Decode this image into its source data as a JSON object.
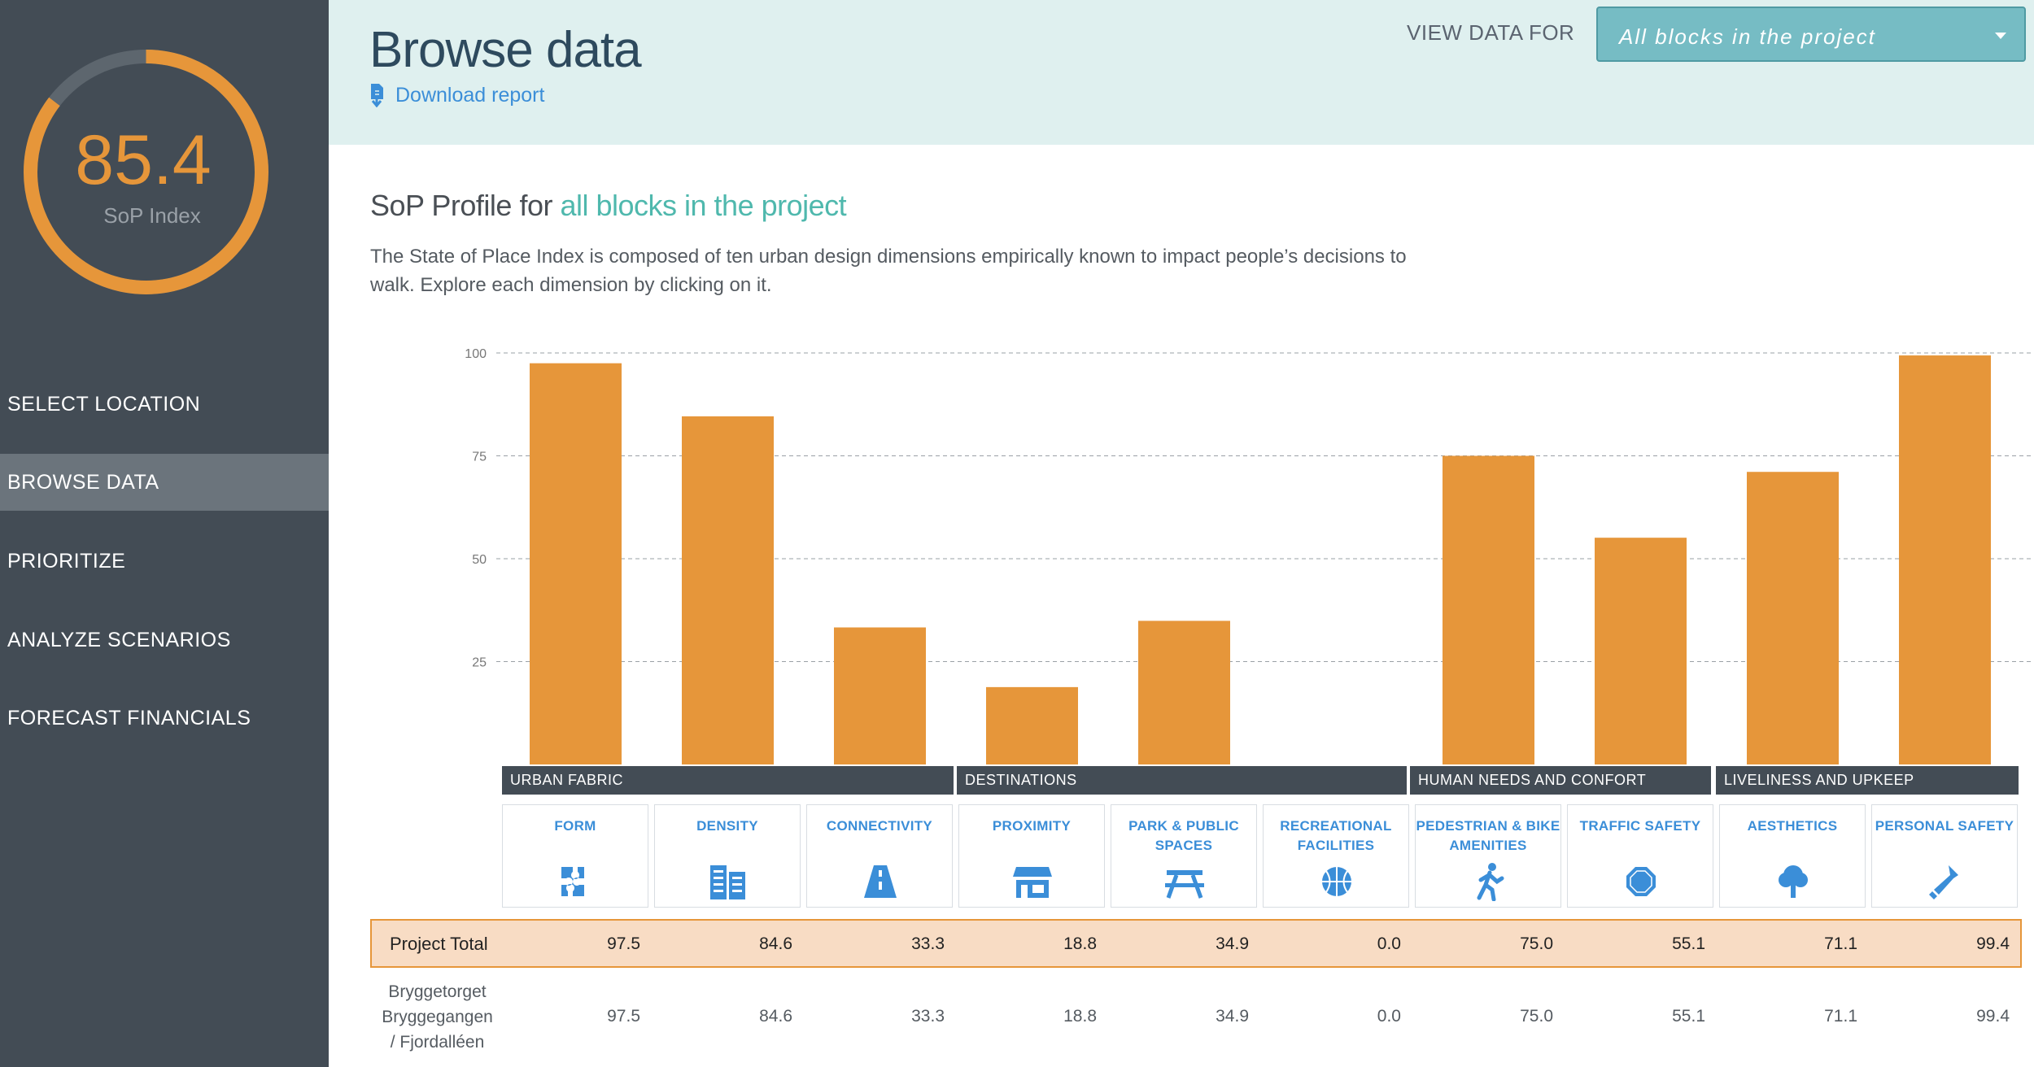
{
  "score": {
    "value": "85.4",
    "label": "SoP Index",
    "fraction": 0.854
  },
  "sidebar": {
    "items": [
      {
        "label": "SELECT LOCATION",
        "active": false
      },
      {
        "label": "BROWSE DATA",
        "active": true
      },
      {
        "label": "PRIORITIZE",
        "active": false
      },
      {
        "label": "ANALYZE SCENARIOS",
        "active": false
      },
      {
        "label": "FORECAST FINANCIALS",
        "active": false
      }
    ]
  },
  "header": {
    "title": "Browse data",
    "download_label": "Download report",
    "view_label": "VIEW DATA FOR",
    "view_value": "All blocks in the project"
  },
  "main": {
    "heading_prefix": "SoP Profile for",
    "heading_accent": "all blocks in the project",
    "description": "The State of Place Index is composed of ten urban design dimensions empirically known to impact people’s decisions to walk. Explore each dimension by clicking on it."
  },
  "chart_data": {
    "type": "bar",
    "categories": [
      "FORM",
      "DENSITY",
      "CONNECTIVITY",
      "PROXIMITY",
      "PARK & PUBLIC SPACES",
      "RECREATIONAL FACILITIES",
      "PEDESTRIAN & BIKE AMENITIES",
      "TRAFFIC SAFETY",
      "AESTHETICS",
      "PERSONAL SAFETY"
    ],
    "values": [
      97.5,
      84.6,
      33.3,
      18.8,
      34.9,
      0.0,
      75.0,
      55.1,
      71.1,
      99.4
    ],
    "ylim": [
      0,
      100
    ],
    "yticks": [
      25,
      50,
      75,
      100
    ],
    "grid": true,
    "bar_color": "#e6963a"
  },
  "groups": [
    {
      "label": "URBAN FABRIC"
    },
    {
      "label": "DESTINATIONS"
    },
    {
      "label": "HUMAN NEEDS AND CONFORT"
    },
    {
      "label": "LIVELINESS AND UPKEEP"
    }
  ],
  "dimensions": [
    {
      "label": "FORM",
      "icon": "puzzle-icon"
    },
    {
      "label": "DENSITY",
      "icon": "buildings-icon"
    },
    {
      "label": "CONNECTIVITY",
      "icon": "road-icon"
    },
    {
      "label": "PROXIMITY",
      "icon": "store-icon"
    },
    {
      "label": "PARK & PUBLIC SPACES",
      "icon": "picnic-table-icon"
    },
    {
      "label": "RECREATIONAL FACILITIES",
      "icon": "basketball-icon"
    },
    {
      "label": "PEDESTRIAN & BIKE AMENITIES",
      "icon": "pedestrian-icon"
    },
    {
      "label": "TRAFFIC SAFETY",
      "icon": "octagon-icon"
    },
    {
      "label": "AESTHETICS",
      "icon": "tree-icon"
    },
    {
      "label": "PERSONAL SAFETY",
      "icon": "flashlight-icon"
    }
  ],
  "table": {
    "total": {
      "label": "Project Total",
      "values": [
        "97.5",
        "84.6",
        "33.3",
        "18.8",
        "34.9",
        "0.0",
        "75.0",
        "55.1",
        "71.1",
        "99.4"
      ]
    },
    "block": {
      "label_lines": [
        "Bryggetorget",
        "Bryggegangen",
        "/ Fjordalléen"
      ],
      "values": [
        "97.5",
        "84.6",
        "33.3",
        "18.8",
        "34.9",
        "0.0",
        "75.0",
        "55.1",
        "71.1",
        "99.4"
      ]
    }
  },
  "colors": {
    "accent": "#e6963a",
    "teal": "#4fb8ad",
    "link": "#3b8ed8",
    "sidebar": "#434c55"
  }
}
